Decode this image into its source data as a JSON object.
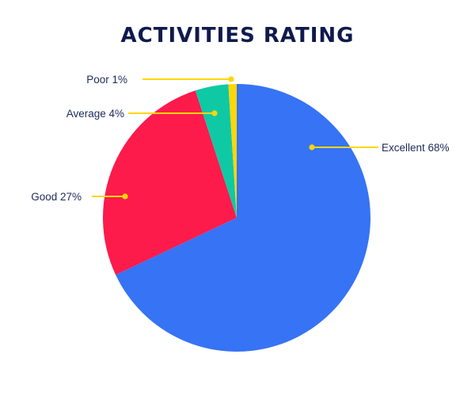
{
  "chart_data": {
    "type": "pie",
    "title": "ACTIVITIES RATING",
    "slices": [
      {
        "label": "Excellent 68%",
        "name": "Excellent",
        "value": 68,
        "color": "#3673f5"
      },
      {
        "label": "Good 27%",
        "name": "Good",
        "value": 27,
        "color": "#fc1b4b"
      },
      {
        "label": "Average 4%",
        "name": "Average",
        "value": 4,
        "color": "#0fc9a5"
      },
      {
        "label": "Poor 1%",
        "name": "Poor",
        "value": 1,
        "color": "#ffd60a"
      }
    ],
    "leader_color": "#ffd60a",
    "start": "12 o'clock",
    "direction": "clockwise",
    "legend": "none"
  }
}
